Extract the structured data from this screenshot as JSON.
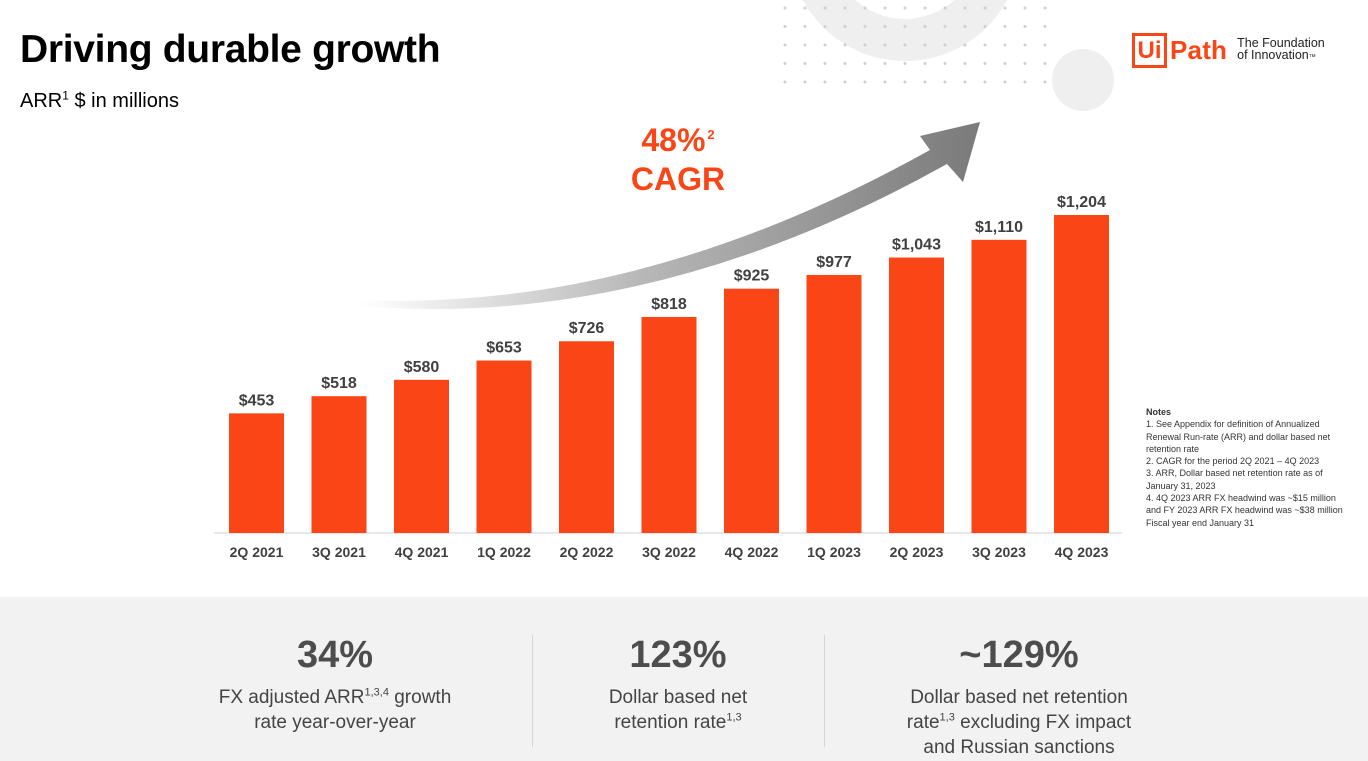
{
  "header": {
    "title": "Driving durable growth",
    "subtitle_main": "ARR",
    "subtitle_sup": "1",
    "subtitle_rest": " $ in millions"
  },
  "logo": {
    "mark": "Ui",
    "word": "Path",
    "tagline_line1": "The Foundation",
    "tagline_line2": "of Innovation",
    "tagline_tm": "™"
  },
  "cagr": {
    "value": "48%",
    "sup": "2",
    "label": "CAGR"
  },
  "chart_data": {
    "type": "bar",
    "categories": [
      "2Q 2021",
      "3Q 2021",
      "4Q 2021",
      "1Q 2022",
      "2Q 2022",
      "3Q 2022",
      "4Q 2022",
      "1Q 2023",
      "2Q 2023",
      "3Q 2023",
      "4Q 2023"
    ],
    "values": [
      453,
      518,
      580,
      653,
      726,
      818,
      925,
      977,
      1043,
      1110,
      1204
    ],
    "data_labels": [
      "$453",
      "$518",
      "$580",
      "$653",
      "$726",
      "$818",
      "$925",
      "$977",
      "$1,043",
      "$1,110",
      "$1,204"
    ],
    "title": "",
    "ylabel": "",
    "bar_color": "#fa4616",
    "label_color": "#404040",
    "grid": false,
    "ylim": [
      0,
      1204
    ]
  },
  "notes": {
    "title": "Notes",
    "lines": [
      "1. See Appendix for definition of Annualized Renewal Run-rate (ARR) and dollar based net retention rate",
      "2. CAGR for the period 2Q 2021 – 4Q 2023",
      "3. ARR, Dollar based net retention rate as of January 31, 2023",
      "4. 4Q 2023 ARR FX headwind was ~$15 million and FY 2023 ARR FX headwind was ~$38 million",
      "Fiscal year end January 31"
    ]
  },
  "stats": [
    {
      "value": "34%",
      "desc_a": "FX adjusted ARR",
      "sup_a": "1,3,4",
      "desc_b": " growth",
      "desc_c": "rate year-over-year"
    },
    {
      "value": "123%",
      "desc_a": "Dollar based net",
      "desc_b": "retention rate",
      "sup_b": "1,3"
    },
    {
      "value": "~129%",
      "desc_a": "Dollar based net retention",
      "desc_b": "rate",
      "sup_b": "1,3",
      "desc_c": " excluding FX impact",
      "desc_d": "and Russian sanctions"
    }
  ],
  "colors": {
    "accent": "#fa4616",
    "bottom_panel": "#f2f2f2"
  }
}
